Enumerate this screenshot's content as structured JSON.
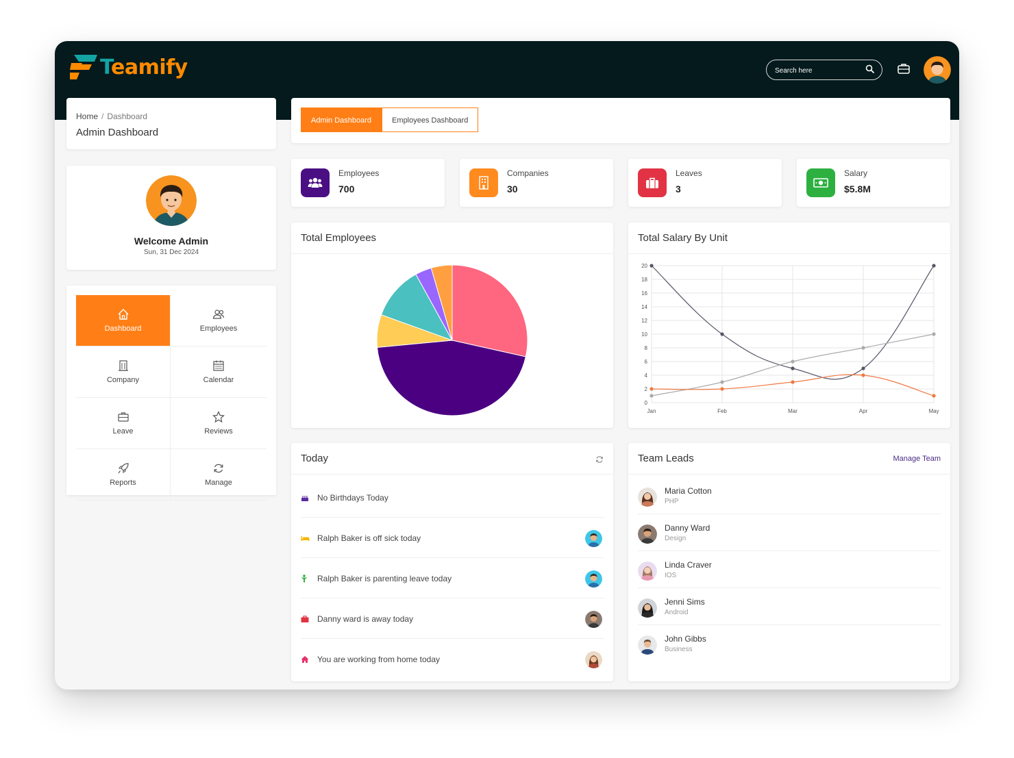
{
  "app": {
    "logo_text_a": "T",
    "logo_text_b": "eamify",
    "search_placeholder": "Search here"
  },
  "breadcrumb": {
    "home": "Home",
    "separator": "/",
    "current": "Dashboard"
  },
  "page_title": "Admin Dashboard",
  "profile": {
    "welcome": "Welcome Admin",
    "date": "Sun, 31 Dec 2024"
  },
  "nav": [
    {
      "label": "Dashboard",
      "icon": "home-icon",
      "active": true
    },
    {
      "label": "Employees",
      "icon": "users-icon",
      "active": false
    },
    {
      "label": "Company",
      "icon": "building-icon",
      "active": false
    },
    {
      "label": "Calendar",
      "icon": "calendar-icon",
      "active": false
    },
    {
      "label": "Leave",
      "icon": "briefcase-icon",
      "active": false
    },
    {
      "label": "Reviews",
      "icon": "star-icon",
      "active": false
    },
    {
      "label": "Reports",
      "icon": "rocket-icon",
      "active": false
    },
    {
      "label": "Manage",
      "icon": "refresh-icon",
      "active": false
    }
  ],
  "tabs": [
    {
      "label": "Admin Dashboard",
      "active": true
    },
    {
      "label": "Employees Dashboard",
      "active": false
    }
  ],
  "stats": [
    {
      "label": "Employees",
      "value": "700",
      "color": "#4b0f84",
      "icon": "users-icon"
    },
    {
      "label": "Companies",
      "value": "30",
      "color": "#ff8a1e",
      "icon": "building-icon"
    },
    {
      "label": "Leaves",
      "value": "3",
      "color": "#e13343",
      "icon": "briefcase-icon"
    },
    {
      "label": "Salary",
      "value": "$5.8M",
      "color": "#2db040",
      "icon": "money-icon"
    }
  ],
  "total_employees": {
    "title": "Total Employees",
    "chart_data": {
      "type": "pie",
      "slices": [
        {
          "value": 28.5,
          "color": "#ff6680"
        },
        {
          "value": 45,
          "color": "#4b0082"
        },
        {
          "value": 7,
          "color": "#ffcc55"
        },
        {
          "value": 11.5,
          "color": "#4bc0c0"
        },
        {
          "value": 3.5,
          "color": "#9966ff"
        },
        {
          "value": 4.5,
          "color": "#ff9f40"
        }
      ]
    }
  },
  "total_salary": {
    "title": "Total Salary By Unit",
    "chart_data": {
      "type": "line",
      "categories": [
        "Jan",
        "Feb",
        "Mar",
        "Apr",
        "May"
      ],
      "ylim": [
        0,
        20
      ],
      "yticks": [
        0,
        2,
        4,
        6,
        8,
        10,
        12,
        14,
        16,
        18,
        20
      ],
      "grid": true,
      "series": [
        {
          "values": [
            20,
            10,
            5,
            5,
            20
          ],
          "color": "#555566"
        },
        {
          "values": [
            1,
            3,
            6,
            8,
            10
          ],
          "color": "#aaaaaa"
        },
        {
          "values": [
            2,
            2,
            3,
            4,
            1
          ],
          "color": "#f07840"
        }
      ]
    }
  },
  "today": {
    "title": "Today",
    "items": [
      {
        "text": "No Birthdays Today",
        "icon": "cake-icon",
        "icon_color": "#5a2ca0",
        "avatar": false
      },
      {
        "text": "Ralph Baker is off sick today",
        "icon": "bed-icon",
        "icon_color": "#f5b700",
        "avatar": true
      },
      {
        "text": "Ralph Baker is parenting leave today",
        "icon": "child-icon",
        "icon_color": "#2db040",
        "avatar": true
      },
      {
        "text": "Danny ward is away today",
        "icon": "suitcase-icon",
        "icon_color": "#e13343",
        "avatar": true
      },
      {
        "text": "You are working from home today",
        "icon": "house-icon",
        "icon_color": "#e8336b",
        "avatar": true
      }
    ]
  },
  "team_leads": {
    "title": "Team Leads",
    "manage_label": "Manage Team",
    "items": [
      {
        "name": "Maria Cotton",
        "role": "PHP"
      },
      {
        "name": "Danny Ward",
        "role": "Design"
      },
      {
        "name": "Linda Craver",
        "role": "IOS"
      },
      {
        "name": "Jenni Sims",
        "role": "Android"
      },
      {
        "name": "John Gibbs",
        "role": "Business"
      }
    ]
  }
}
